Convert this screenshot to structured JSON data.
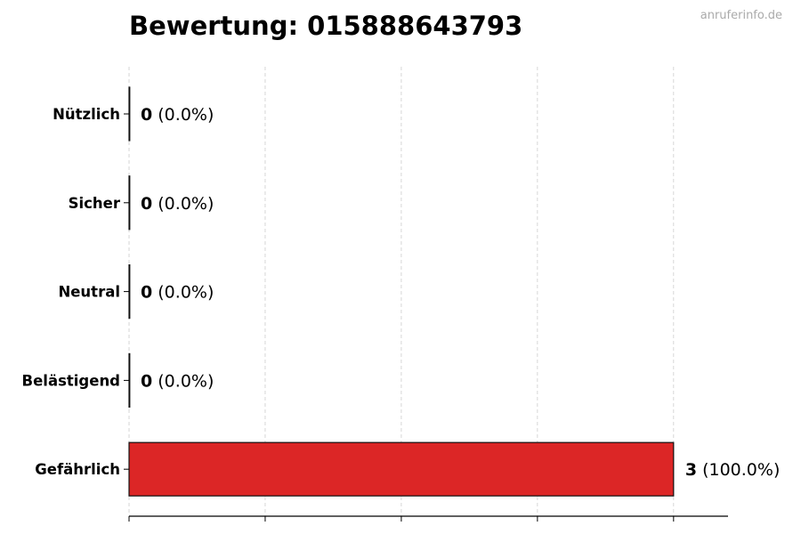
{
  "title": "Bewertung: 015888643793",
  "watermark": "anruferinfo.de",
  "chart_data": {
    "type": "bar",
    "orientation": "horizontal",
    "title": "Bewertung: 015888643793",
    "categories": [
      "Nützlich",
      "Sicher",
      "Neutral",
      "Belästigend",
      "Gefährlich"
    ],
    "values": [
      0,
      0,
      0,
      0,
      3
    ],
    "value_labels": [
      {
        "count": "0",
        "percent": "(0.0%)"
      },
      {
        "count": "0",
        "percent": "(0.0%)"
      },
      {
        "count": "0",
        "percent": "(0.0%)"
      },
      {
        "count": "0",
        "percent": "(0.0%)"
      },
      {
        "count": "3",
        "percent": "(100.0%)"
      }
    ],
    "bar_color": "#dc2626",
    "xlim": [
      0,
      3.3
    ],
    "x_gridlines": [
      0,
      0.75,
      1.5,
      2.25,
      3
    ],
    "x_tick_labels_shown": false,
    "grid": "vertical dashed",
    "xlabel": "",
    "ylabel": ""
  }
}
